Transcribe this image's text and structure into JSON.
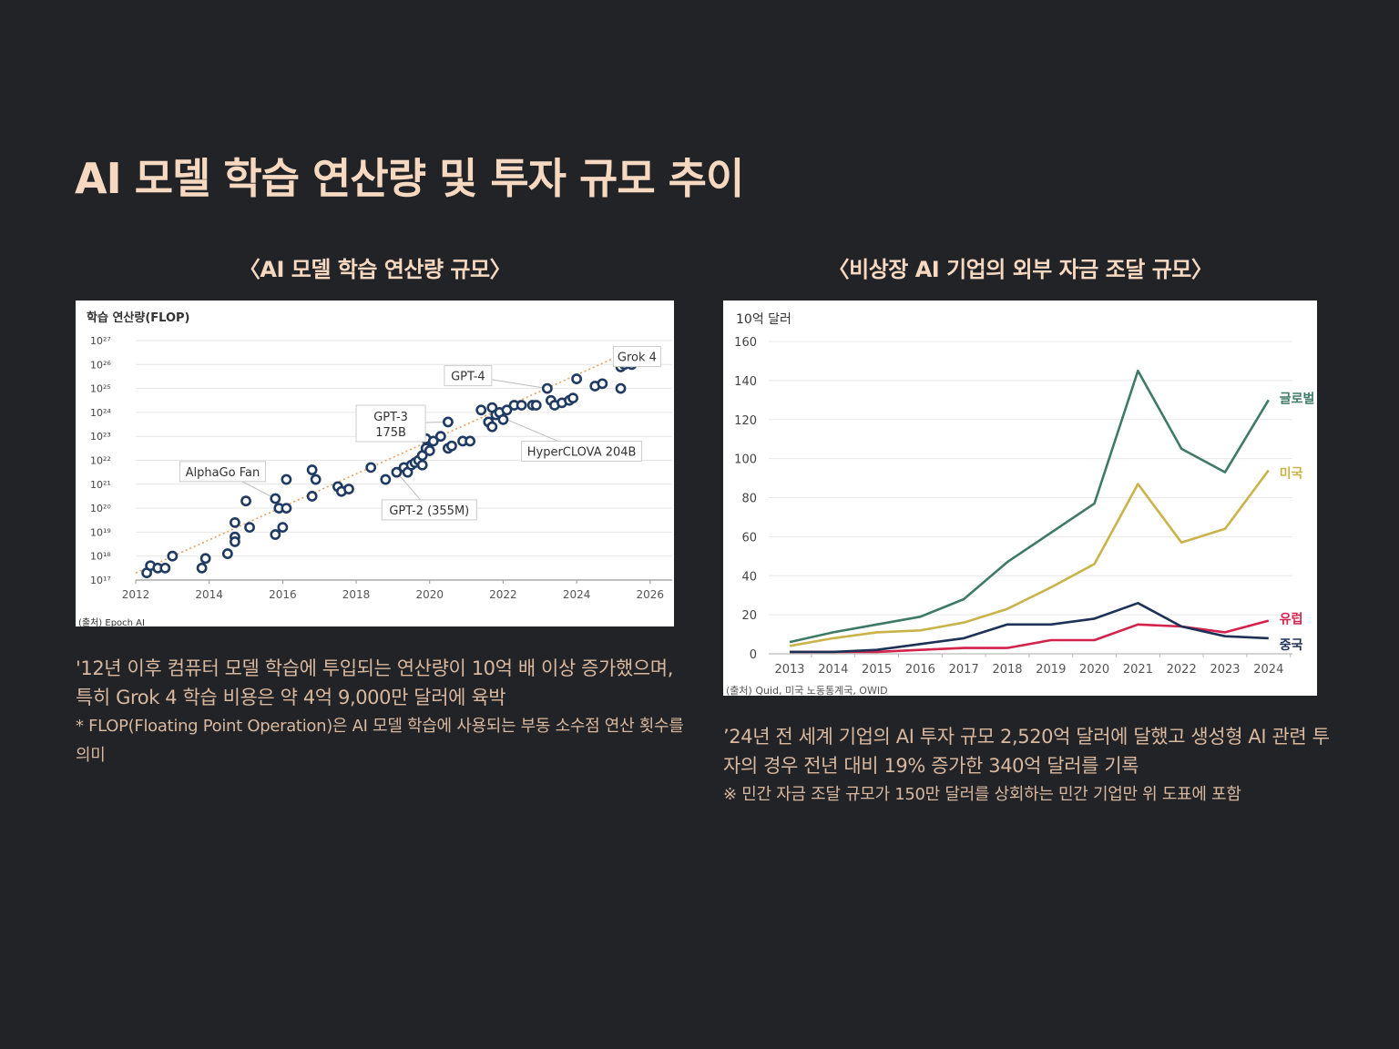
{
  "page": {
    "title": "AI 모델 학습 연산량 및 투자 규모 추이"
  },
  "left_section": {
    "heading": "〈AI 모델 학습 연산량 규모〉",
    "description": "'12년 이후 컴퓨터 모델 학습에 투입되는 연산량이 10억 배 이상 증가했으며, 특히 Grok 4 학습 비용은 약 4억 9,000만 달러에 육박",
    "note": "* FLOP(Floating Point Operation)은 AI 모델 학습에 사용되는 부동 소수점 연산 횟수를 의미"
  },
  "right_section": {
    "heading": "〈비상장 AI 기업의 외부 자금 조달 규모〉",
    "description": "’24년 전 세계 기업의 AI 투자 규모 2,520억 달러에 달했고 생성형 AI 관련 투자의 경우 전년 대비 19% 증가한 340억 달러를 기록",
    "note": "※ 민간 자금 조달 규모가 150만 달러를 상회하는 민간 기업만 위 도표에 포함"
  },
  "chart_data": [
    {
      "type": "scatter",
      "title": "",
      "ylabel": "학습 연산량(FLOP)",
      "xlabel": "",
      "source": "(출처) Epoch AI",
      "y_scale": "log10",
      "ylim_exp": [
        17,
        27
      ],
      "y_ticks": [
        "10¹⁷",
        "10¹⁸",
        "10¹⁹",
        "10²⁰",
        "10²¹",
        "10²²",
        "10²³",
        "10²⁴",
        "10²⁵",
        "10²⁶",
        "10²⁷"
      ],
      "xlim": [
        2012,
        2026.6
      ],
      "x_ticks": [
        "2012",
        "2014",
        "2016",
        "2018",
        "2020",
        "2022",
        "2024",
        "2026"
      ],
      "grid": true,
      "trend_line": {
        "from": [
          2012,
          17.3
        ],
        "to": [
          2025.5,
          26.6
        ],
        "color": "#e8a060"
      },
      "marker_color": "#1f3a63",
      "points_log10": [
        [
          2012.3,
          17.3
        ],
        [
          2012.4,
          17.6
        ],
        [
          2012.6,
          17.5
        ],
        [
          2012.8,
          17.5
        ],
        [
          2013.0,
          18.0
        ],
        [
          2013.8,
          17.5
        ],
        [
          2013.9,
          17.9
        ],
        [
          2014.5,
          18.1
        ],
        [
          2014.7,
          18.8
        ],
        [
          2014.7,
          18.6
        ],
        [
          2014.7,
          19.4
        ],
        [
          2015.0,
          20.3
        ],
        [
          2015.1,
          19.2
        ],
        [
          2015.8,
          20.4
        ],
        [
          2015.8,
          18.9
        ],
        [
          2015.9,
          20.0
        ],
        [
          2016.0,
          19.2
        ],
        [
          2016.1,
          20.0
        ],
        [
          2016.1,
          21.2
        ],
        [
          2016.8,
          21.6
        ],
        [
          2016.8,
          20.5
        ],
        [
          2016.9,
          21.2
        ],
        [
          2017.5,
          20.9
        ],
        [
          2017.6,
          20.7
        ],
        [
          2017.8,
          20.8
        ],
        [
          2018.4,
          21.7
        ],
        [
          2018.8,
          21.2
        ],
        [
          2019.1,
          21.5
        ],
        [
          2019.3,
          21.7
        ],
        [
          2019.4,
          21.5
        ],
        [
          2019.5,
          21.8
        ],
        [
          2019.6,
          21.9
        ],
        [
          2019.7,
          22.0
        ],
        [
          2019.8,
          22.2
        ],
        [
          2019.8,
          21.8
        ],
        [
          2019.9,
          22.5
        ],
        [
          2019.9,
          22.9
        ],
        [
          2020.0,
          22.4
        ],
        [
          2020.1,
          22.8
        ],
        [
          2020.3,
          23.0
        ],
        [
          2020.5,
          22.5
        ],
        [
          2020.5,
          23.6
        ],
        [
          2020.6,
          22.6
        ],
        [
          2020.9,
          22.8
        ],
        [
          2021.1,
          22.8
        ],
        [
          2021.4,
          24.1
        ],
        [
          2021.6,
          23.6
        ],
        [
          2021.7,
          24.2
        ],
        [
          2021.7,
          23.4
        ],
        [
          2021.8,
          23.9
        ],
        [
          2021.9,
          24.0
        ],
        [
          2022.0,
          23.7
        ],
        [
          2022.1,
          24.1
        ],
        [
          2022.3,
          24.3
        ],
        [
          2022.5,
          24.3
        ],
        [
          2022.8,
          24.3
        ],
        [
          2022.9,
          24.3
        ],
        [
          2023.2,
          25.0
        ],
        [
          2023.3,
          24.5
        ],
        [
          2023.4,
          24.3
        ],
        [
          2023.6,
          24.4
        ],
        [
          2023.8,
          24.5
        ],
        [
          2023.9,
          24.6
        ],
        [
          2024.0,
          25.4
        ],
        [
          2024.5,
          25.1
        ],
        [
          2024.7,
          25.2
        ],
        [
          2025.2,
          25.0
        ],
        [
          2025.2,
          25.9
        ],
        [
          2025.3,
          26.0
        ],
        [
          2025.5,
          26.0
        ]
      ],
      "annotations": [
        {
          "label": "Grok 4",
          "x": 2025.5,
          "y": 26.0
        },
        {
          "label": "GPT-4",
          "x": 2023.2,
          "y": 25.0
        },
        {
          "label": "GPT-3 175B",
          "x": 2020.5,
          "y": 23.6
        },
        {
          "label": "HyperCLOVA 204B",
          "x": 2021.8,
          "y": 23.9
        },
        {
          "label": "AlphaGo Fan",
          "x": 2015.8,
          "y": 20.4
        },
        {
          "label": "GPT-2 (355M)",
          "x": 2019.1,
          "y": 21.5
        }
      ]
    },
    {
      "type": "line",
      "title": "",
      "ylabel": "10억 달러",
      "xlabel": "",
      "source": "(출처) Quid, 미국 노동통계국, OWID",
      "categories": [
        "2013",
        "2014",
        "2015",
        "2016",
        "2017",
        "2018",
        "2019",
        "2020",
        "2021",
        "2022",
        "2023",
        "2024"
      ],
      "ylim": [
        0,
        160
      ],
      "y_ticks": [
        "0",
        "20",
        "40",
        "60",
        "80",
        "100",
        "120",
        "140",
        "160"
      ],
      "grid": true,
      "series": [
        {
          "name": "글로벌",
          "color": "#3f7a68",
          "values": [
            6,
            11,
            15,
            19,
            28,
            47,
            62,
            77,
            145,
            105,
            93,
            130
          ]
        },
        {
          "name": "미국",
          "color": "#c9b34a",
          "values": [
            4,
            8,
            11,
            12,
            16,
            23,
            34,
            46,
            87,
            57,
            64,
            94
          ]
        },
        {
          "name": "유럽",
          "color": "#d3224c",
          "values": [
            1,
            1,
            1,
            2,
            3,
            3,
            7,
            7,
            15,
            14,
            11,
            17
          ]
        },
        {
          "name": "중국",
          "color": "#1e3257",
          "values": [
            1,
            1,
            2,
            5,
            8,
            15,
            15,
            18,
            26,
            14,
            9,
            8
          ]
        }
      ]
    }
  ]
}
